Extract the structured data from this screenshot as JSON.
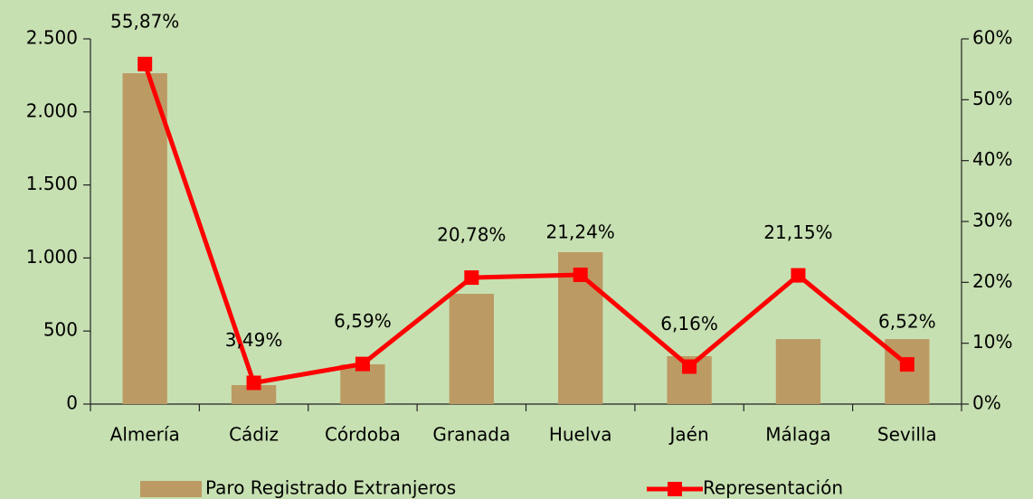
{
  "chart_data": {
    "type": "bar",
    "categories": [
      "Almería",
      "Cádiz",
      "Córdoba",
      "Granada",
      "Huelva",
      "Jaén",
      "Málaga",
      "Sevilla"
    ],
    "series": [
      {
        "name": "Paro Registrado Extranjeros",
        "type": "bar",
        "color": "#bc9a64",
        "values": [
          2265,
          130,
          272,
          755,
          1040,
          328,
          445,
          445
        ]
      },
      {
        "name": "Representación",
        "type": "line",
        "axis": "y2",
        "color": "#ff0000",
        "values": [
          55.87,
          3.49,
          6.59,
          20.78,
          21.24,
          6.16,
          21.15,
          6.52
        ],
        "value_labels": [
          "55,87%",
          "3,49%",
          "6,59%",
          "20,78%",
          "21,24%",
          "6,16%",
          "21,15%",
          "6,52%"
        ]
      }
    ],
    "ylim": [
      0,
      2500
    ],
    "yticks": [
      0,
      500,
      {
        "value": 1000,
        "label": "1.000"
      },
      {
        "value": 1500,
        "label": "1.500"
      },
      {
        "value": 2000,
        "label": "2.000"
      },
      {
        "value": 2500,
        "label": "2.500"
      }
    ],
    "y2lim": [
      0,
      60
    ],
    "y2ticks": [
      {
        "value": 0,
        "label": "0%"
      },
      {
        "value": 10,
        "label": "10%"
      },
      {
        "value": 20,
        "label": "20%"
      },
      {
        "value": 30,
        "label": "30%"
      },
      {
        "value": 40,
        "label": "40%"
      },
      {
        "value": 50,
        "label": "50%"
      },
      {
        "value": 60,
        "label": "60%"
      }
    ],
    "legend": "bottom"
  }
}
